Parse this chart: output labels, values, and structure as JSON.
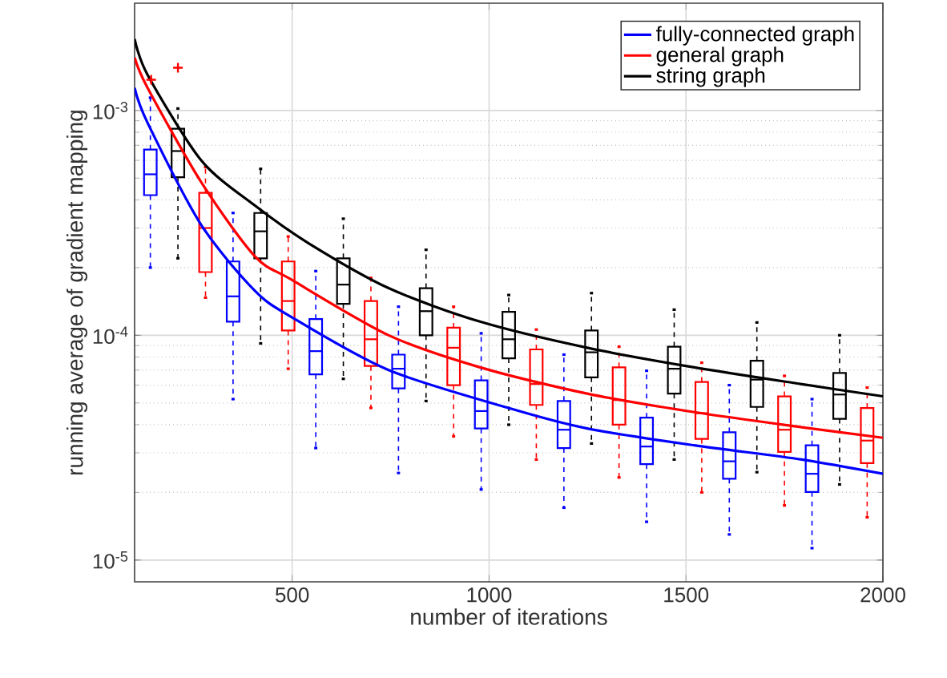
{
  "chart_data": {
    "type": "box",
    "xlabel": "number of iterations",
    "ylabel": "running average of gradient mapping",
    "xlim": [
      100,
      2000
    ],
    "xticks": [
      500,
      1000,
      1500,
      2000
    ],
    "ylim": [
      8e-06,
      0.003
    ],
    "yticks": [
      {
        "value": 1e-05,
        "label": "10$^{-5}$"
      },
      {
        "value": 0.0001,
        "label": "10$^{-4}$"
      },
      {
        "value": 0.001,
        "label": "10$^{-3}$"
      }
    ],
    "log": "y",
    "grid": true,
    "legend": "top right",
    "series": [
      {
        "color": "#0000ff",
        "line_style": "dashed",
        "x": [
          140,
          350,
          560,
          770,
          980,
          1190,
          1400,
          1610,
          1820
        ],
        "boxes": [
          {
            "low": 0.0002,
            "q1": 0.00042,
            "median": 0.00052,
            "q3": 0.00067,
            "high": 0.00114
          },
          {
            "low": 5.2e-05,
            "q1": 0.000115,
            "median": 0.000149,
            "q3": 0.000213,
            "high": 0.00035
          },
          {
            "low": 3.15e-05,
            "q1": 6.7e-05,
            "median": 8.5e-05,
            "q3": 0.000118,
            "high": 0.000193
          },
          {
            "low": 2.44e-05,
            "q1": 5.8e-05,
            "median": 7.1e-05,
            "q3": 8.2e-05,
            "high": 0.000134
          },
          {
            "low": 2.06e-05,
            "q1": 3.85e-05,
            "median": 4.6e-05,
            "q3": 6.3e-05,
            "high": 0.000102
          },
          {
            "low": 1.71e-05,
            "q1": 3.15e-05,
            "median": 3.8e-05,
            "q3": 5.1e-05,
            "high": 8.2e-05
          },
          {
            "low": 1.48e-05,
            "q1": 2.67e-05,
            "median": 3.2e-05,
            "q3": 4.3e-05,
            "high": 6.95e-05
          },
          {
            "low": 1.3e-05,
            "q1": 2.3e-05,
            "median": 2.75e-05,
            "q3": 3.7e-05,
            "high": 6e-05
          },
          {
            "low": 1.13e-05,
            "q1": 2.01e-05,
            "median": 2.42e-05,
            "q3": 3.24e-05,
            "high": 5.2e-05
          }
        ]
      },
      {
        "color": "#000000",
        "line_style": "dashed",
        "x": [
          210,
          420,
          630,
          840,
          1050,
          1260,
          1470,
          1680,
          1890
        ],
        "boxes": [
          {
            "low": 0.00022,
            "q1": 0.000505,
            "median": 0.00066,
            "q3": 0.00083,
            "high": 0.00102
          },
          {
            "low": 9.2e-05,
            "q1": 0.00022,
            "median": 0.00029,
            "q3": 0.00035,
            "high": 0.00055
          },
          {
            "low": 6.4e-05,
            "q1": 0.000138,
            "median": 0.000168,
            "q3": 0.00022,
            "high": 0.00033
          },
          {
            "low": 5.1e-05,
            "q1": 0.0001,
            "median": 0.000128,
            "q3": 0.000162,
            "high": 0.00024
          },
          {
            "low": 4e-05,
            "q1": 7.9e-05,
            "median": 9.6e-05,
            "q3": 0.000127,
            "high": 0.000151
          },
          {
            "low": 3.3e-05,
            "q1": 6.5e-05,
            "median": 8.4e-05,
            "q3": 0.000105,
            "high": 0.000154
          },
          {
            "low": 2.8e-05,
            "q1": 5.5e-05,
            "median": 7.1e-05,
            "q3": 8.9e-05,
            "high": 0.00013
          },
          {
            "low": 2.46e-05,
            "q1": 4.8e-05,
            "median": 6.35e-05,
            "q3": 7.7e-05,
            "high": 0.000114
          },
          {
            "low": 2.17e-05,
            "q1": 4.25e-05,
            "median": 5.45e-05,
            "q3": 6.8e-05,
            "high": 0.0001
          }
        ]
      },
      {
        "color": "#ff0000",
        "line_style": "dashed",
        "x": [
          280,
          490,
          700,
          910,
          1120,
          1330,
          1540,
          1750,
          1960
        ],
        "boxes": [
          {
            "low": 0.000147,
            "q1": 0.000191,
            "median": 0.0003,
            "q3": 0.00043,
            "high": 0.00056
          },
          {
            "low": 7.1e-05,
            "q1": 0.000105,
            "median": 0.000142,
            "q3": 0.000213,
            "high": 0.000275
          },
          {
            "low": 4.75e-05,
            "q1": 7.3e-05,
            "median": 9.6e-05,
            "q3": 0.000142,
            "high": 0.00018
          },
          {
            "low": 3.55e-05,
            "q1": 6e-05,
            "median": 8.8e-05,
            "q3": 0.000108,
            "high": 0.000134
          },
          {
            "low": 2.8e-05,
            "q1": 4.9e-05,
            "median": 6.07e-05,
            "q3": 8.65e-05,
            "high": 0.000106
          },
          {
            "low": 2.33e-05,
            "q1": 4e-05,
            "median": 5.15e-05,
            "q3": 7.2e-05,
            "high": 8.9e-05
          },
          {
            "low": 2e-05,
            "q1": 3.46e-05,
            "median": 4.5e-05,
            "q3": 6.2e-05,
            "high": 7.55e-05
          },
          {
            "low": 1.75e-05,
            "q1": 3.03e-05,
            "median": 3.8e-05,
            "q3": 5.35e-05,
            "high": 6.6e-05
          },
          {
            "low": 1.55e-05,
            "q1": 2.7e-05,
            "median": 3.4e-05,
            "q3": 4.75e-05,
            "high": 5.85e-05
          }
        ]
      },
      {
        "type": "scatter",
        "color": "#ff0000",
        "marker": "cross",
        "x": [
          142,
          210
        ],
        "values": [
          0.00137,
          0.00155
        ]
      },
      {
        "type": "line",
        "name": "fully-connected graph",
        "color": "#0000ff",
        "x": [
          100,
          133,
          269,
          405,
          500,
          745,
          1058,
          1249,
          1521,
          1794,
          2000
        ],
        "values": [
          0.00126,
          0.00088,
          0.00031,
          0.000158,
          0.00012,
          7e-05,
          4.7e-05,
          3.85e-05,
          3.24e-05,
          2.8e-05,
          2.42e-05
        ]
      },
      {
        "type": "line",
        "name": "general graph",
        "color": "#ff0000",
        "x": [
          100,
          133,
          269,
          405,
          500,
          745,
          977,
          1249,
          1521,
          1794,
          2000
        ],
        "values": [
          0.00172,
          0.00126,
          0.00048,
          0.000225,
          0.000176,
          0.0001,
          7.2e-05,
          5.5e-05,
          4.55e-05,
          3.9e-05,
          3.5e-05
        ]
      },
      {
        "type": "line",
        "name": "string graph",
        "color": "#000000",
        "x": [
          100,
          133,
          269,
          405,
          541,
          745,
          977,
          1249,
          1521,
          1794,
          2000
        ],
        "values": [
          0.00208,
          0.00144,
          0.0006,
          0.000378,
          0.000257,
          0.000162,
          0.000115,
          8.8e-05,
          7.2e-05,
          6.06e-05,
          5.35e-05
        ]
      }
    ]
  }
}
